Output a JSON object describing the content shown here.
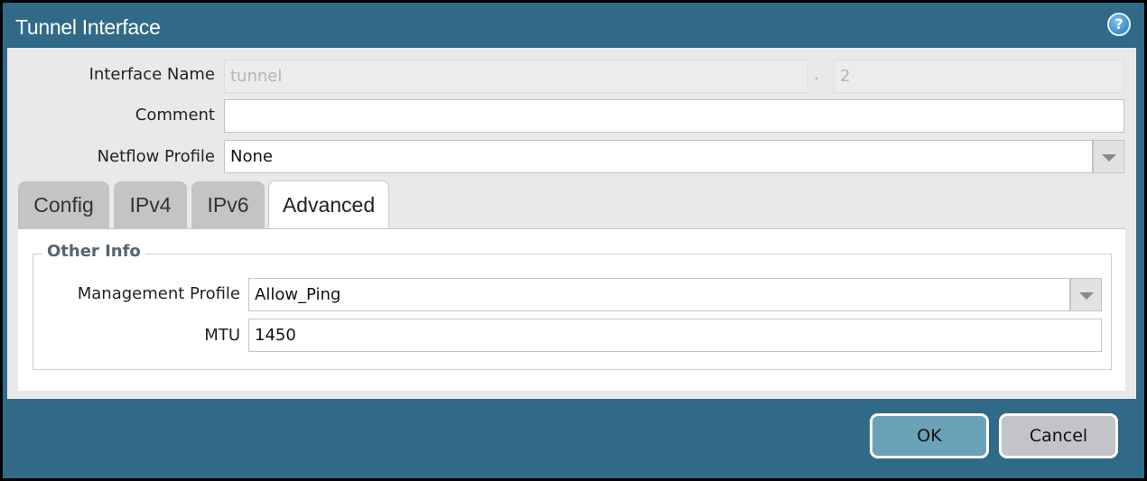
{
  "dialog": {
    "title": "Tunnel Interface",
    "help_icon": "help-icon"
  },
  "form": {
    "interface_name": {
      "label": "Interface Name",
      "value": "tunnel",
      "separator": ".",
      "suffix": "2"
    },
    "comment": {
      "label": "Comment",
      "value": ""
    },
    "netflow": {
      "label": "Netflow Profile",
      "value": "None"
    }
  },
  "tabs": [
    {
      "label": "Config"
    },
    {
      "label": "IPv4"
    },
    {
      "label": "IPv6"
    },
    {
      "label": "Advanced",
      "active": true
    }
  ],
  "advanced": {
    "section": "Other Info",
    "management_profile": {
      "label": "Management Profile",
      "value": "Allow_Ping"
    },
    "mtu": {
      "label": "MTU",
      "value": "1450"
    }
  },
  "buttons": {
    "ok": "OK",
    "cancel": "Cancel"
  },
  "colors": {
    "titlebar": "#306a88",
    "ok": "#6aa3b9",
    "cancel": "#c2c4c8"
  }
}
